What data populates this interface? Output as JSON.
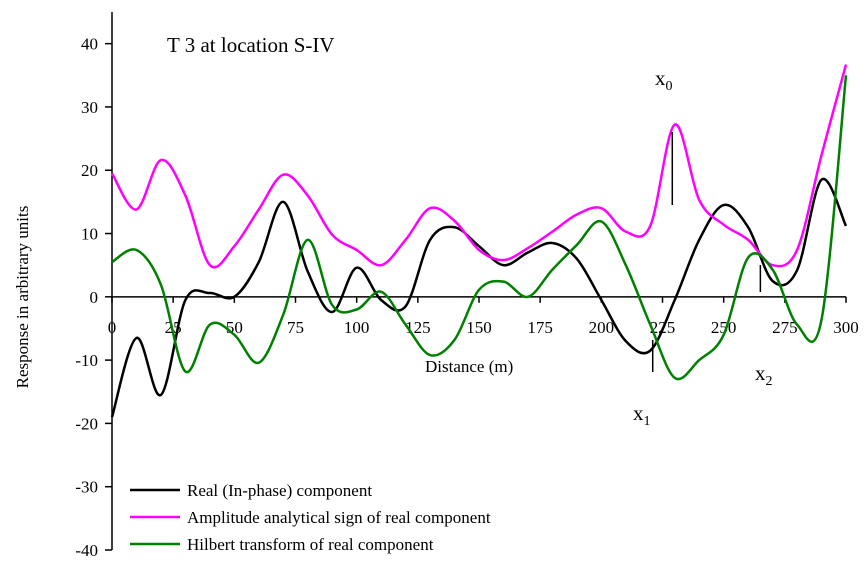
{
  "chart_data": {
    "type": "line",
    "title": "T 3 at location S-IV",
    "x_label": "Distance (m)",
    "y_label": "Response in arbitrary units",
    "x": [
      0,
      10,
      20,
      30,
      40,
      50,
      60,
      70,
      80,
      90,
      100,
      110,
      120,
      130,
      140,
      150,
      160,
      170,
      180,
      190,
      200,
      210,
      220,
      230,
      240,
      250,
      260,
      270,
      280,
      290,
      300
    ],
    "series": [
      {
        "name": "Real (In-phase) component",
        "color": "#000000",
        "values": [
          -19,
          -6.5,
          -15.5,
          -0.5,
          0.6,
          0,
          5.5,
          15,
          4,
          -2.4,
          4.6,
          -0.5,
          -1.5,
          9,
          11,
          8,
          5,
          7,
          8.5,
          6,
          -0.5,
          -7,
          -8.5,
          -0.5,
          9,
          14.5,
          11,
          2.5,
          4.2,
          18.5,
          11.2
        ]
      },
      {
        "name": "Amplitude analytical sign of real component",
        "color": "#ff00ff",
        "values": [
          19.5,
          13.8,
          21.6,
          16,
          5,
          8,
          13.8,
          19.3,
          16,
          9.8,
          7.4,
          5,
          9,
          14,
          12,
          7.4,
          5.8,
          7.7,
          10.3,
          13,
          14,
          10.3,
          11.2,
          27.2,
          15.3,
          11.4,
          9,
          5,
          7.4,
          22.4,
          36.7
        ]
      },
      {
        "name": "Hilbert transform of real component",
        "color": "#008000",
        "values": [
          5.5,
          7.4,
          1.9,
          -11.8,
          -4.4,
          -6,
          -10.4,
          -2.8,
          9,
          -1.3,
          -2,
          0.8,
          -4.4,
          -9.2,
          -6.8,
          1.1,
          2.4,
          0,
          4.3,
          8.2,
          11.9,
          5,
          -4.4,
          -12.8,
          -10,
          -6,
          6.2,
          4.3,
          -4.4,
          -3.6,
          35
        ]
      }
    ],
    "xlim": [
      0,
      300
    ],
    "ylim": [
      -40,
      45
    ],
    "xticks": [
      0,
      25,
      50,
      75,
      100,
      125,
      150,
      175,
      200,
      225,
      250,
      275,
      300
    ],
    "yticks": [
      -40,
      -30,
      -20,
      -10,
      0,
      10,
      20,
      30,
      40
    ],
    "annotations": [
      {
        "base": "x",
        "sub": "0",
        "x": 229
      },
      {
        "base": "x",
        "sub": "1",
        "x": 221
      },
      {
        "base": "x",
        "sub": "2",
        "x": 265
      }
    ],
    "legend": "lower left"
  }
}
